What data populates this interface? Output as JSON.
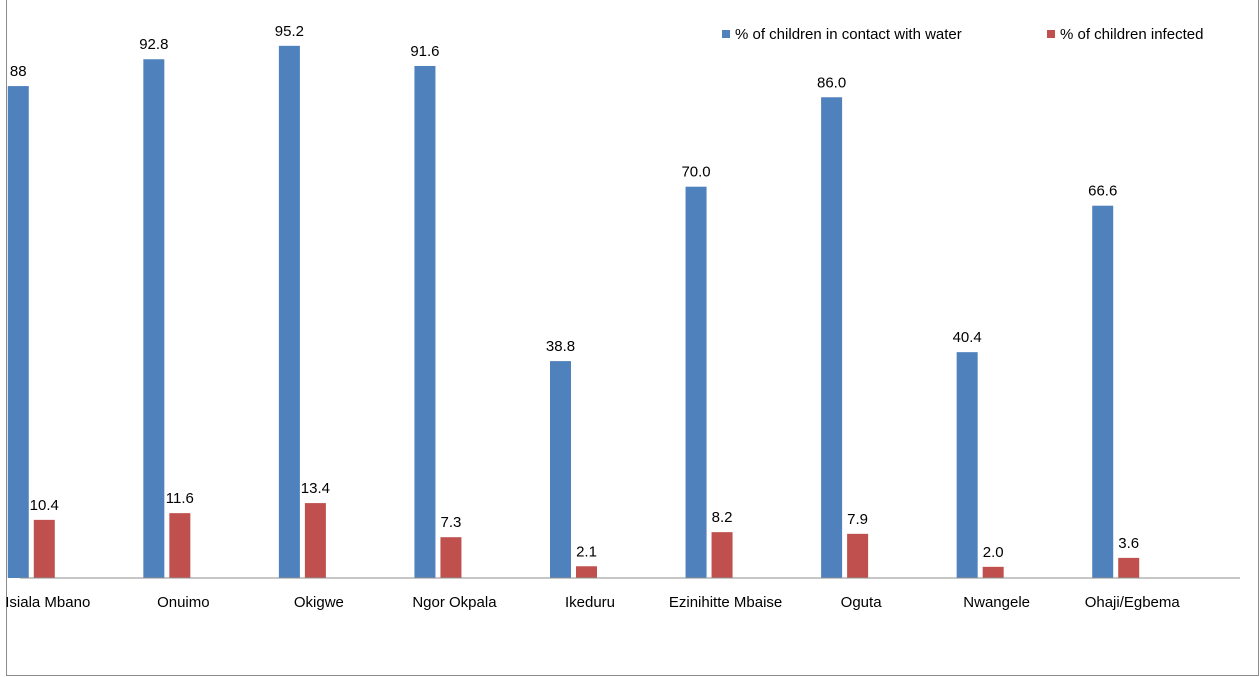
{
  "chart_data": {
    "type": "bar",
    "title": "",
    "xlabel": "",
    "ylabel": "",
    "ylim": [
      0,
      100
    ],
    "grid": false,
    "legend_position": "top-right",
    "categories": [
      "Isiala Mbano",
      "Onuimo",
      "Okigwe",
      "Ngor Okpala",
      "Ikeduru",
      "Ezinihitte Mbaise",
      "Oguta",
      "Nwangele",
      "Ohaji/Egbema"
    ],
    "series": [
      {
        "name": "% of children in contact with water",
        "color": "#4F81BD",
        "values": [
          88,
          92.8,
          95.2,
          91.6,
          38.8,
          70.0,
          86.0,
          40.4,
          66.6
        ],
        "labels": [
          "88",
          "92.8",
          "95.2",
          "91.6",
          "38.8",
          "70.0",
          "86.0",
          "40.4",
          "66.6"
        ]
      },
      {
        "name": "% of children infected",
        "color": "#C0504D",
        "values": [
          10.4,
          11.6,
          13.4,
          7.3,
          2.1,
          8.2,
          7.9,
          2.0,
          3.6
        ],
        "labels": [
          "10.4",
          "11.6",
          "13.4",
          "7.3",
          "2.1",
          "8.2",
          "7.9",
          "2.0",
          "3.6"
        ]
      }
    ]
  }
}
